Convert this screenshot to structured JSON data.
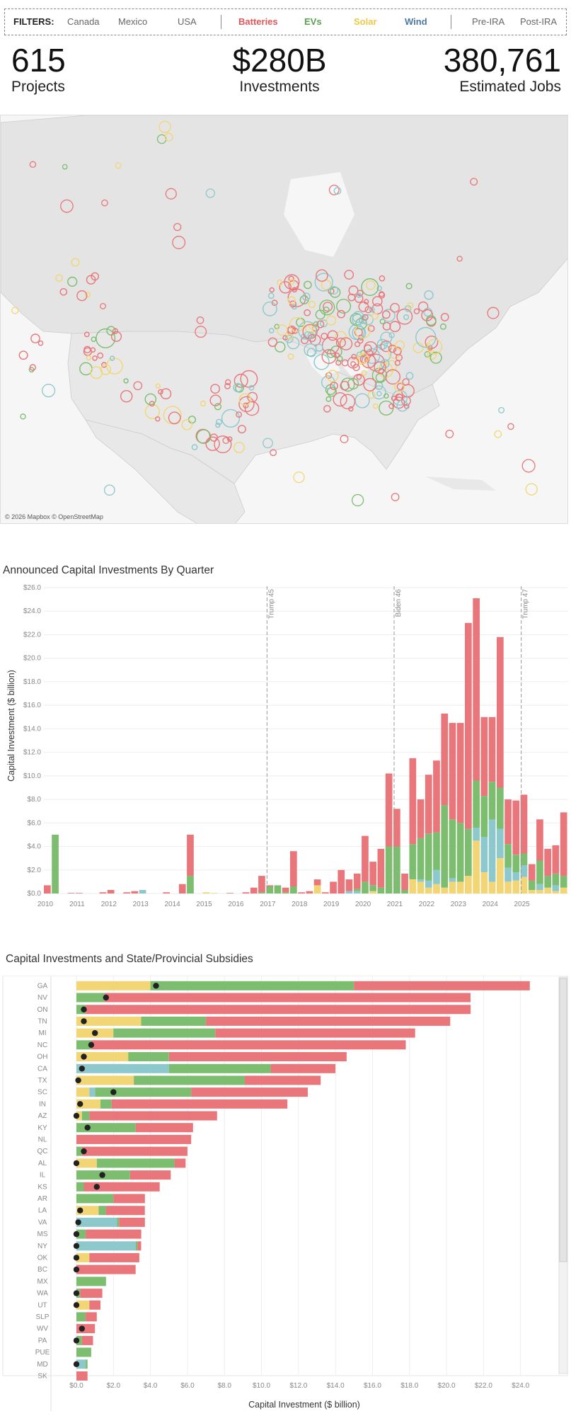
{
  "filters": {
    "label": "FILTERS:",
    "items": [
      {
        "label": "Canada",
        "color": "#666666",
        "bold": false
      },
      {
        "label": "Mexico",
        "color": "#666666",
        "bold": false
      },
      {
        "label": "USA",
        "color": "#666666",
        "bold": false
      },
      {
        "label": "Batteries",
        "color": "#e15759",
        "bold": true
      },
      {
        "label": "EVs",
        "color": "#59a14f",
        "bold": true
      },
      {
        "label": "Solar",
        "color": "#edc948",
        "bold": true
      },
      {
        "label": "Wind",
        "color": "#4e79a7",
        "bold": true
      },
      {
        "label": "Pre-IRA",
        "color": "#666666",
        "bold": false
      },
      {
        "label": "Post-IRA",
        "color": "#666666",
        "bold": false
      }
    ]
  },
  "kpis": [
    {
      "value": "615",
      "caption": "Projects"
    },
    {
      "value": "$280B",
      "caption": "Investments"
    },
    {
      "value": "380,761",
      "caption": "Estimated Jobs"
    }
  ],
  "map": {
    "credit": "© 2026 Mapbox © OpenStreetMap"
  },
  "colors": {
    "batteries": "#e8767a",
    "evs": "#7cbd6f",
    "solar": "#f2d675",
    "wind": "#8cc8cc"
  },
  "chart_data": [
    {
      "type": "bar",
      "title": "Announced Capital Investments By Quarter",
      "ylabel": "Capital Investment ($ billion)",
      "ylim": [
        0,
        26
      ],
      "yticks": [
        "$0.0",
        "$2.0",
        "$4.0",
        "$6.0",
        "$8.0",
        "$10.0",
        "$12.0",
        "$14.0",
        "$16.0",
        "$18.0",
        "$20.0",
        "$22.0",
        "$24.0",
        "$26.0"
      ],
      "xticks": [
        "2010",
        "2011",
        "2012",
        "2013",
        "2014",
        "2015",
        "2016",
        "2017",
        "2018",
        "2019",
        "2020",
        "2021",
        "2022",
        "2023",
        "2024",
        "2025"
      ],
      "annotations": [
        {
          "label": "Trump 45",
          "x": 2017
        },
        {
          "label": "Biden 46",
          "x": 2021
        },
        {
          "label": "Trump 47",
          "x": 2025
        }
      ],
      "stack_order": [
        "solar",
        "wind",
        "evs",
        "batteries"
      ],
      "quarters": [
        {
          "x": 2010.0,
          "evs": 0,
          "batteries": 0.7,
          "solar": 0,
          "wind": 0
        },
        {
          "x": 2010.25,
          "evs": 5.0,
          "batteries": 0,
          "solar": 0,
          "wind": 0
        },
        {
          "x": 2010.75,
          "evs": 0,
          "batteries": 0.05,
          "solar": 0,
          "wind": 0
        },
        {
          "x": 2011.0,
          "evs": 0,
          "batteries": 0.05,
          "solar": 0,
          "wind": 0
        },
        {
          "x": 2011.75,
          "evs": 0,
          "batteries": 0.1,
          "solar": 0,
          "wind": 0
        },
        {
          "x": 2012.0,
          "evs": 0,
          "batteries": 0.3,
          "solar": 0,
          "wind": 0
        },
        {
          "x": 2012.5,
          "evs": 0,
          "batteries": 0.1,
          "solar": 0,
          "wind": 0
        },
        {
          "x": 2012.75,
          "evs": 0,
          "batteries": 0.2,
          "solar": 0,
          "wind": 0
        },
        {
          "x": 2013.0,
          "evs": 0,
          "batteries": 0,
          "solar": 0,
          "wind": 0.3
        },
        {
          "x": 2013.75,
          "evs": 0,
          "batteries": 0.1,
          "solar": 0,
          "wind": 0
        },
        {
          "x": 2014.25,
          "evs": 0,
          "batteries": 0.8,
          "solar": 0,
          "wind": 0
        },
        {
          "x": 2014.5,
          "evs": 1.5,
          "batteries": 3.5,
          "solar": 0,
          "wind": 0
        },
        {
          "x": 2015.0,
          "evs": 0,
          "batteries": 0,
          "solar": 0.1,
          "wind": 0
        },
        {
          "x": 2015.25,
          "evs": 0,
          "batteries": 0,
          "solar": 0.05,
          "wind": 0
        },
        {
          "x": 2015.75,
          "evs": 0,
          "batteries": 0.05,
          "solar": 0,
          "wind": 0
        },
        {
          "x": 2016.25,
          "evs": 0,
          "batteries": 0.1,
          "solar": 0,
          "wind": 0
        },
        {
          "x": 2016.5,
          "evs": 0,
          "batteries": 0.5,
          "solar": 0,
          "wind": 0
        },
        {
          "x": 2016.75,
          "evs": 0.1,
          "batteries": 1.4,
          "solar": 0,
          "wind": 0
        },
        {
          "x": 2017.0,
          "evs": 0.6,
          "batteries": 0.1,
          "solar": 0,
          "wind": 0
        },
        {
          "x": 2017.25,
          "evs": 0.7,
          "batteries": 0,
          "solar": 0,
          "wind": 0
        },
        {
          "x": 2017.5,
          "evs": 0.1,
          "batteries": 0.4,
          "solar": 0,
          "wind": 0
        },
        {
          "x": 2017.75,
          "evs": 0.6,
          "batteries": 3.0,
          "solar": 0,
          "wind": 0
        },
        {
          "x": 2018.0,
          "evs": 0,
          "batteries": 0.1,
          "solar": 0,
          "wind": 0
        },
        {
          "x": 2018.25,
          "evs": 0,
          "batteries": 0.2,
          "solar": 0,
          "wind": 0
        },
        {
          "x": 2018.5,
          "evs": 0,
          "batteries": 0.5,
          "solar": 0.7,
          "wind": 0
        },
        {
          "x": 2018.75,
          "evs": 0,
          "batteries": 0.1,
          "solar": 0,
          "wind": 0
        },
        {
          "x": 2019.0,
          "evs": 0,
          "batteries": 1.0,
          "solar": 0,
          "wind": 0
        },
        {
          "x": 2019.25,
          "evs": 0,
          "batteries": 2.0,
          "solar": 0,
          "wind": 0
        },
        {
          "x": 2019.5,
          "evs": 0,
          "batteries": 1.0,
          "solar": 0,
          "wind": 0.2
        },
        {
          "x": 2019.75,
          "evs": 0.2,
          "batteries": 1.3,
          "solar": 0,
          "wind": 0.2
        },
        {
          "x": 2020.0,
          "evs": 1.0,
          "batteries": 3.9,
          "solar": 0,
          "wind": 0
        },
        {
          "x": 2020.25,
          "evs": 0.5,
          "batteries": 2.0,
          "solar": 0.2,
          "wind": 0
        },
        {
          "x": 2020.5,
          "evs": 0.5,
          "batteries": 3.3,
          "solar": 0,
          "wind": 0
        },
        {
          "x": 2020.75,
          "evs": 4.0,
          "batteries": 6.2,
          "solar": 0,
          "wind": 0
        },
        {
          "x": 2021.0,
          "evs": 4.0,
          "batteries": 3.2,
          "solar": 0,
          "wind": 0
        },
        {
          "x": 2021.25,
          "evs": 0.3,
          "batteries": 1.4,
          "solar": 0,
          "wind": 0
        },
        {
          "x": 2021.5,
          "evs": 3.0,
          "batteries": 7.3,
          "solar": 1.2,
          "wind": 0
        },
        {
          "x": 2021.75,
          "evs": 3.5,
          "batteries": 3.3,
          "solar": 1.0,
          "wind": 0.2
        },
        {
          "x": 2022.0,
          "evs": 4.0,
          "batteries": 5.0,
          "solar": 0.5,
          "wind": 0.6
        },
        {
          "x": 2022.25,
          "evs": 3.2,
          "batteries": 6.1,
          "solar": 0.8,
          "wind": 1.2
        },
        {
          "x": 2022.5,
          "evs": 7.0,
          "batteries": 7.8,
          "solar": 0.5,
          "wind": 0
        },
        {
          "x": 2022.75,
          "evs": 5.0,
          "batteries": 8.2,
          "solar": 1.0,
          "wind": 0.3
        },
        {
          "x": 2023.0,
          "evs": 5.0,
          "batteries": 8.5,
          "solar": 1.0,
          "wind": 0
        },
        {
          "x": 2023.25,
          "evs": 4.0,
          "batteries": 17.5,
          "solar": 1.5,
          "wind": 0
        },
        {
          "x": 2023.5,
          "evs": 4.0,
          "batteries": 15.5,
          "solar": 4.5,
          "wind": 1.1
        },
        {
          "x": 2023.75,
          "evs": 3.5,
          "batteries": 6.7,
          "solar": 1.8,
          "wind": 3.0
        },
        {
          "x": 2024.0,
          "evs": 3.2,
          "batteries": 5.5,
          "solar": 1.0,
          "wind": 5.3
        },
        {
          "x": 2024.25,
          "evs": 3.5,
          "batteries": 12.8,
          "solar": 3.0,
          "wind": 2.5
        },
        {
          "x": 2024.5,
          "evs": 2.0,
          "batteries": 3.8,
          "solar": 1.0,
          "wind": 1.2
        },
        {
          "x": 2024.75,
          "evs": 1.5,
          "batteries": 4.6,
          "solar": 1.1,
          "wind": 0.7
        },
        {
          "x": 2025.0,
          "evs": 1.0,
          "batteries": 5.0,
          "solar": 1.4,
          "wind": 1.0
        },
        {
          "x": 2025.25,
          "evs": 0.8,
          "batteries": 1.4,
          "solar": 0.3,
          "wind": 0
        },
        {
          "x": 2025.5,
          "evs": 2.0,
          "batteries": 3.5,
          "solar": 0.3,
          "wind": 0.5
        },
        {
          "x": 2025.75,
          "evs": 1.0,
          "batteries": 2.3,
          "solar": 0.5,
          "wind": 0
        },
        {
          "x": 2026.0,
          "evs": 1.0,
          "batteries": 2.4,
          "solar": 0.2,
          "wind": 0.5
        },
        {
          "x": 2026.25,
          "evs": 1.0,
          "batteries": 5.4,
          "solar": 0.5,
          "wind": 0
        }
      ]
    },
    {
      "type": "bar",
      "title": "Capital Investments and State/Provincial Subsidies",
      "xlabel": "Capital Investment ($ billion)",
      "xlim": [
        0,
        26
      ],
      "xticks": [
        "$0.0",
        "$2.0",
        "$4.0",
        "$6.0",
        "$8.0",
        "$10.0",
        "$12.0",
        "$14.0",
        "$16.0",
        "$18.0",
        "$20.0",
        "$22.0",
        "$24.0"
      ],
      "stack_order": [
        "solar",
        "wind",
        "evs",
        "batteries"
      ],
      "rows": [
        {
          "label": "GA",
          "solar": 4.0,
          "wind": 0,
          "evs": 11.0,
          "batteries": 9.5,
          "subsidy": 4.3
        },
        {
          "label": "NV",
          "solar": 0,
          "wind": 0,
          "evs": 1.5,
          "batteries": 19.8,
          "subsidy": 1.6
        },
        {
          "label": "ON",
          "solar": 0,
          "wind": 0,
          "evs": 0.5,
          "batteries": 20.8,
          "subsidy": 0.4
        },
        {
          "label": "TN",
          "solar": 3.5,
          "wind": 0,
          "evs": 3.5,
          "batteries": 13.2,
          "subsidy": 0.4
        },
        {
          "label": "MI",
          "solar": 2.0,
          "wind": 0,
          "evs": 5.5,
          "batteries": 10.8,
          "subsidy": 1.0
        },
        {
          "label": "NC",
          "solar": 0,
          "wind": 0,
          "evs": 0.8,
          "batteries": 17.0,
          "subsidy": 0.8
        },
        {
          "label": "OH",
          "solar": 2.8,
          "wind": 0,
          "evs": 2.2,
          "batteries": 9.6,
          "subsidy": 0.4
        },
        {
          "label": "CA",
          "solar": 0,
          "wind": 5.0,
          "evs": 5.5,
          "batteries": 3.5,
          "subsidy": 0.3
        },
        {
          "label": "TX",
          "solar": 3.1,
          "wind": 0,
          "evs": 6.0,
          "batteries": 4.1,
          "subsidy": 0.1
        },
        {
          "label": "SC",
          "solar": 0.7,
          "wind": 0.3,
          "evs": 5.2,
          "batteries": 6.3,
          "subsidy": 2.0
        },
        {
          "label": "IN",
          "solar": 1.3,
          "wind": 0,
          "evs": 0.6,
          "batteries": 9.5,
          "subsidy": 0.2
        },
        {
          "label": "AZ",
          "solar": 0.3,
          "wind": 0,
          "evs": 0.4,
          "batteries": 6.9,
          "subsidy": 0.0
        },
        {
          "label": "KY",
          "solar": 0,
          "wind": 0,
          "evs": 3.2,
          "batteries": 3.1,
          "subsidy": 0.6
        },
        {
          "label": "NL",
          "solar": 0,
          "wind": 0,
          "evs": 0,
          "batteries": 6.2,
          "subsidy": null
        },
        {
          "label": "QC",
          "solar": 0,
          "wind": 0,
          "evs": 0.3,
          "batteries": 5.7,
          "subsidy": 0.4
        },
        {
          "label": "AL",
          "solar": 1.1,
          "wind": 0,
          "evs": 4.2,
          "batteries": 0.6,
          "subsidy": 0.0
        },
        {
          "label": "IL",
          "solar": 0,
          "wind": 0,
          "evs": 2.9,
          "batteries": 2.2,
          "subsidy": 1.4
        },
        {
          "label": "KS",
          "solar": 0,
          "wind": 0,
          "evs": 0.4,
          "batteries": 4.1,
          "subsidy": 1.1
        },
        {
          "label": "AR",
          "solar": 0,
          "wind": 0,
          "evs": 2.0,
          "batteries": 1.7,
          "subsidy": null
        },
        {
          "label": "LA",
          "solar": 1.2,
          "wind": 0,
          "evs": 0.4,
          "batteries": 2.1,
          "subsidy": 0.2
        },
        {
          "label": "VA",
          "solar": 0,
          "wind": 2.2,
          "evs": 0.1,
          "batteries": 1.4,
          "subsidy": 0.1
        },
        {
          "label": "MS",
          "solar": 0,
          "wind": 0,
          "evs": 0.5,
          "batteries": 3.0,
          "subsidy": 0.0
        },
        {
          "label": "NY",
          "solar": 0,
          "wind": 3.2,
          "evs": 0.1,
          "batteries": 0.2,
          "subsidy": 0.0
        },
        {
          "label": "OK",
          "solar": 0.7,
          "wind": 0,
          "evs": 0,
          "batteries": 2.7,
          "subsidy": 0.0
        },
        {
          "label": "BC",
          "solar": 0,
          "wind": 0,
          "evs": 0,
          "batteries": 3.2,
          "subsidy": 0.0
        },
        {
          "label": "MX",
          "solar": 0,
          "wind": 0,
          "evs": 1.6,
          "batteries": 0,
          "subsidy": null
        },
        {
          "label": "WA",
          "solar": 0,
          "wind": 0,
          "evs": 0.2,
          "batteries": 1.2,
          "subsidy": 0.0
        },
        {
          "label": "UT",
          "solar": 0.7,
          "wind": 0,
          "evs": 0,
          "batteries": 0.6,
          "subsidy": 0.0
        },
        {
          "label": "SLP",
          "solar": 0,
          "wind": 0,
          "evs": 0.5,
          "batteries": 0.6,
          "subsidy": null
        },
        {
          "label": "WV",
          "solar": 0,
          "wind": 0,
          "evs": 0,
          "batteries": 1.0,
          "subsidy": 0.3
        },
        {
          "label": "PA",
          "solar": 0,
          "wind": 0,
          "evs": 0.3,
          "batteries": 0.6,
          "subsidy": 0.0
        },
        {
          "label": "PUE",
          "solar": 0,
          "wind": 0,
          "evs": 0.8,
          "batteries": 0,
          "subsidy": null
        },
        {
          "label": "MD",
          "solar": 0,
          "wind": 0.5,
          "evs": 0.1,
          "batteries": 0,
          "subsidy": 0.0
        },
        {
          "label": "SK",
          "solar": 0,
          "wind": 0,
          "evs": 0,
          "batteries": 0.6,
          "subsidy": null
        }
      ]
    }
  ]
}
